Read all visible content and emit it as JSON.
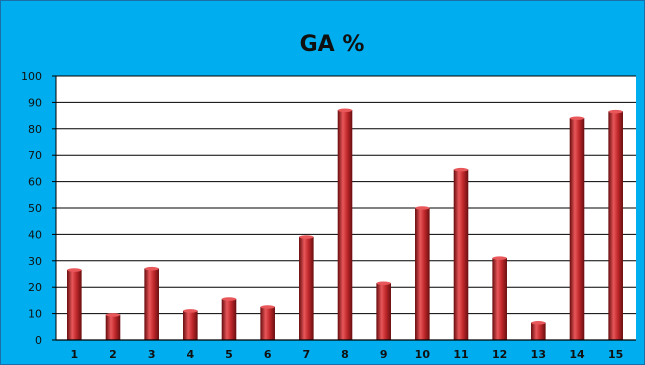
{
  "chart_data": {
    "type": "bar",
    "title": "GA %",
    "xlabel": "",
    "ylabel": "",
    "categories": [
      "1",
      "2",
      "3",
      "4",
      "5",
      "6",
      "7",
      "8",
      "9",
      "10",
      "11",
      "12",
      "13",
      "14",
      "15"
    ],
    "values": [
      26.5,
      9.5,
      27,
      11,
      15.5,
      12.5,
      39,
      87,
      21.5,
      50,
      64.5,
      31,
      6.5,
      84,
      86.5
    ],
    "ylim": [
      0,
      100
    ],
    "yticks": [
      "0",
      "10",
      "20",
      "30",
      "40",
      "50",
      "60",
      "70",
      "80",
      "90",
      "100"
    ],
    "grid": true,
    "legend": "none",
    "colors": {
      "background": "#00aeef",
      "plot_area": "#ffffff",
      "bar": "#c0282b",
      "bar_highlight": "#e8575a",
      "bar_shadow": "#6e1012",
      "gridline": "#000000"
    }
  }
}
